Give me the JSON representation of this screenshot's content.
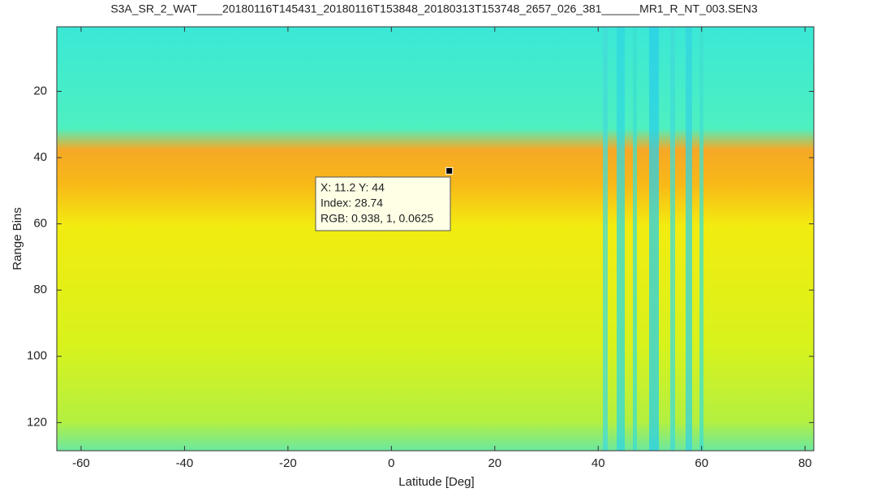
{
  "chart_data": {
    "type": "heatmap",
    "title": "S3A_SR_2_WAT____20180116T145431_20180116T153848_20180313T153748_2657_026_381______MR1_R_NT_003.SEN3",
    "x_label": "Latitude [Deg]",
    "y_label": "Range Bins",
    "xlim": [
      -64.7,
      81.7
    ],
    "xticks": [
      -60,
      -40,
      -20,
      0,
      20,
      40,
      60,
      80
    ],
    "ylim": [
      0.5,
      128.5
    ],
    "yticks": [
      20,
      40,
      60,
      80,
      100,
      120
    ],
    "y_reversed": true,
    "datatip": {
      "x": 11.2,
      "y": 44,
      "lines": [
        "X: 11.2 Y: 44",
        "Index: 28.74",
        "RGB: 0.938, 1, 0.0625"
      ]
    }
  }
}
